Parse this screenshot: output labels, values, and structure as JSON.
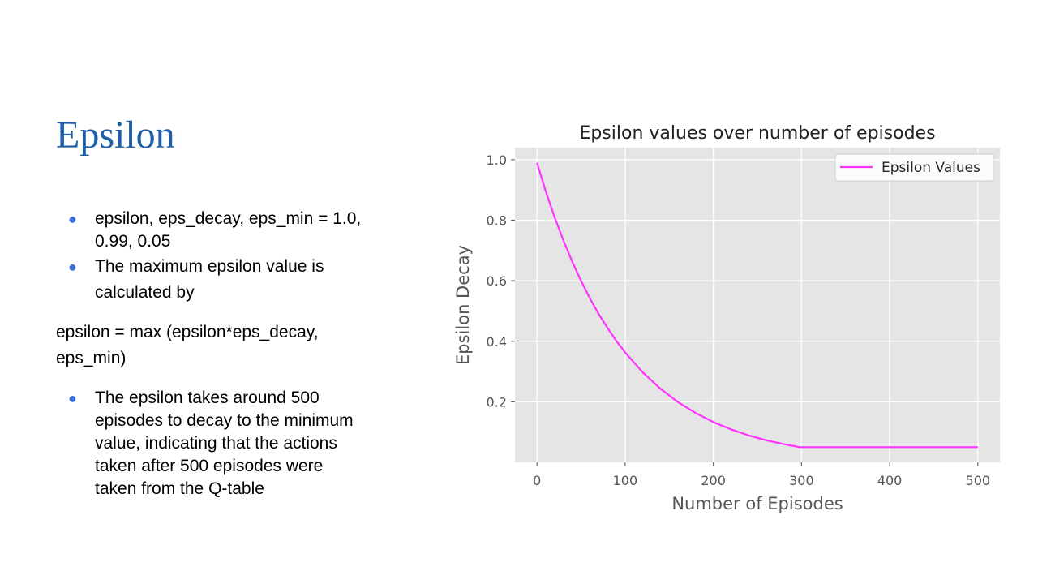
{
  "slide": {
    "title": "Epsilon",
    "bullets_top": [
      "epsilon, eps_decay, eps_min = 1.0, 0.99, 0.05",
      "The maximum epsilon value is calculated by"
    ],
    "formula": "epsilon = max (epsilon*eps_decay, eps_min)",
    "bullets_bottom": [
      "The epsilon takes around 500 episodes to decay to the minimum value, indicating that the actions taken after 500 episodes were taken from the Q-table"
    ],
    "bullet_color": "#3a6fd8",
    "title_color": "#1f5fa8"
  },
  "chart_data": {
    "type": "line",
    "title": "Epsilon values over number of episodes",
    "xlabel": "Number of Episodes",
    "ylabel": "Epsilon Decay",
    "xlim": [
      -25,
      525
    ],
    "ylim": [
      0.0,
      1.04
    ],
    "xticks": [
      0,
      100,
      200,
      300,
      400,
      500
    ],
    "yticks": [
      0.2,
      0.4,
      0.6,
      0.8,
      1.0
    ],
    "xtick_labels": [
      "0",
      "100",
      "200",
      "300",
      "400",
      "500"
    ],
    "ytick_labels": [
      "0.2",
      "0.4",
      "0.6",
      "0.8",
      "1.0"
    ],
    "grid": true,
    "legend": {
      "position": "top-right",
      "entries": [
        "Epsilon Values"
      ]
    },
    "series": [
      {
        "name": "Epsilon Values",
        "color": "#ff33ff",
        "x": [
          0,
          10,
          20,
          30,
          40,
          50,
          60,
          70,
          80,
          90,
          100,
          120,
          140,
          160,
          180,
          200,
          220,
          240,
          260,
          280,
          298,
          320,
          350,
          400,
          450,
          500
        ],
        "y": [
          0.99,
          0.895,
          0.81,
          0.733,
          0.663,
          0.6,
          0.542,
          0.49,
          0.444,
          0.401,
          0.363,
          0.297,
          0.243,
          0.199,
          0.163,
          0.133,
          0.109,
          0.089,
          0.073,
          0.06,
          0.05,
          0.05,
          0.05,
          0.05,
          0.05,
          0.05
        ]
      }
    ],
    "colors": {
      "plot_bg": "#e5e5e5",
      "grid": "#ffffff",
      "tick_text": "#555555",
      "label_text": "#555555",
      "title_text": "#222222"
    }
  }
}
